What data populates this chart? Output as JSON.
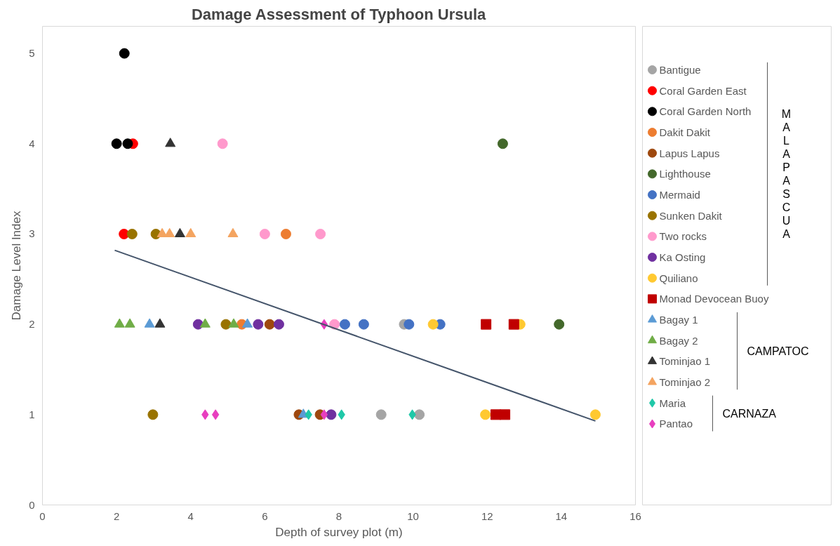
{
  "chart_data": {
    "type": "scatter",
    "title": "Damage Assessment of Typhoon Ursula",
    "xlabel": "Depth of survey plot (m)",
    "ylabel": "Damage Level Index",
    "xlim": [
      0,
      16
    ],
    "xticks": [
      0,
      2,
      4,
      6,
      8,
      10,
      12,
      14,
      16
    ],
    "ylim": [
      0,
      5.3
    ],
    "yticks": [
      0,
      1,
      2,
      3,
      4,
      5
    ],
    "grid": false,
    "legend": "right",
    "annotations": [
      "MALAPASCUA",
      "CAMPATOC",
      "CARNAZA"
    ],
    "series": [
      {
        "name": "Bantigue",
        "color": "#a5a5a5",
        "marker": "circle",
        "x": [
          9.76,
          9.14,
          10.17
        ],
        "values": [
          2,
          1,
          1
        ]
      },
      {
        "name": "Coral Garden East",
        "color": "#ff0000",
        "marker": "circle",
        "x": [
          2.44,
          2.2
        ],
        "values": [
          4,
          3
        ]
      },
      {
        "name": "Coral Garden North",
        "color": "#000000",
        "marker": "circle",
        "x": [
          2.21,
          2.0,
          2.3
        ],
        "values": [
          5,
          4,
          4
        ]
      },
      {
        "name": "Dakit Dakit",
        "color": "#ed7d31",
        "marker": "circle",
        "x": [
          6.57,
          5.38
        ],
        "values": [
          3,
          2
        ]
      },
      {
        "name": "Lapus Lapus",
        "color": "#9e480e",
        "marker": "circle",
        "x": [
          6.13,
          6.92,
          7.49
        ],
        "values": [
          2,
          1,
          1
        ]
      },
      {
        "name": "Lighthouse",
        "color": "#43682b",
        "marker": "circle",
        "x": [
          12.42,
          13.94
        ],
        "values": [
          4,
          2
        ]
      },
      {
        "name": "Mermaid",
        "color": "#4472c4",
        "marker": "circle",
        "x": [
          8.16,
          8.67,
          9.89,
          10.73
        ],
        "values": [
          2,
          2,
          2,
          2
        ]
      },
      {
        "name": "Sunken Dakit",
        "color": "#997300",
        "marker": "circle",
        "x": [
          2.42,
          3.06,
          4.95,
          2.98
        ],
        "values": [
          3,
          3,
          2,
          1
        ]
      },
      {
        "name": "Two rocks",
        "color": "#ff99cc",
        "marker": "circle",
        "x": [
          4.86,
          6.0,
          7.5,
          7.88
        ],
        "values": [
          4,
          3,
          3,
          2
        ]
      },
      {
        "name": "Ka Osting",
        "color": "#7030a0",
        "marker": "circle",
        "x": [
          4.2,
          5.82,
          6.38,
          7.79
        ],
        "values": [
          2,
          2,
          2,
          1
        ]
      },
      {
        "name": "Quiliano",
        "color": "#ffc931",
        "marker": "circle",
        "x": [
          10.54,
          12.89,
          11.95,
          14.92
        ],
        "values": [
          2,
          2,
          1,
          1
        ]
      },
      {
        "name": "Monad Devocean Buoy",
        "color": "#c00000",
        "marker": "square",
        "x": [
          11.97,
          12.72,
          12.23,
          12.48
        ],
        "values": [
          2,
          2,
          1,
          1
        ]
      },
      {
        "name": "Bagay 1",
        "color": "#5b9bd5",
        "marker": "triangle",
        "x": [
          2.89,
          5.53,
          7.04
        ],
        "values": [
          2,
          2,
          1
        ]
      },
      {
        "name": "Bagay 2",
        "color": "#70ad47",
        "marker": "triangle",
        "x": [
          2.08,
          2.36,
          4.39,
          5.16
        ],
        "values": [
          2,
          2,
          2,
          2
        ]
      },
      {
        "name": "Tominjao 1",
        "color": "#333333",
        "marker": "triangle",
        "x": [
          3.45,
          3.71,
          3.17
        ],
        "values": [
          4,
          3,
          2
        ]
      },
      {
        "name": "Tominjao 2",
        "color": "#f4a460",
        "marker": "triangle",
        "x": [
          3.23,
          3.43,
          4.0,
          5.14
        ],
        "values": [
          3,
          3,
          3,
          3
        ]
      },
      {
        "name": "Maria",
        "color": "#1fc8a8",
        "marker": "diamond",
        "x": [
          7.18,
          8.07,
          9.98
        ],
        "values": [
          1,
          1,
          1
        ]
      },
      {
        "name": "Pantao",
        "color": "#e83ebf",
        "marker": "diamond",
        "x": [
          4.39,
          4.67,
          7.6,
          7.6
        ],
        "values": [
          1,
          1,
          1,
          2
        ]
      },
      {
        "type": "line",
        "color": "#44546a",
        "x": [
          1.95,
          14.92
        ],
        "values": [
          2.82,
          0.93
        ]
      }
    ]
  }
}
